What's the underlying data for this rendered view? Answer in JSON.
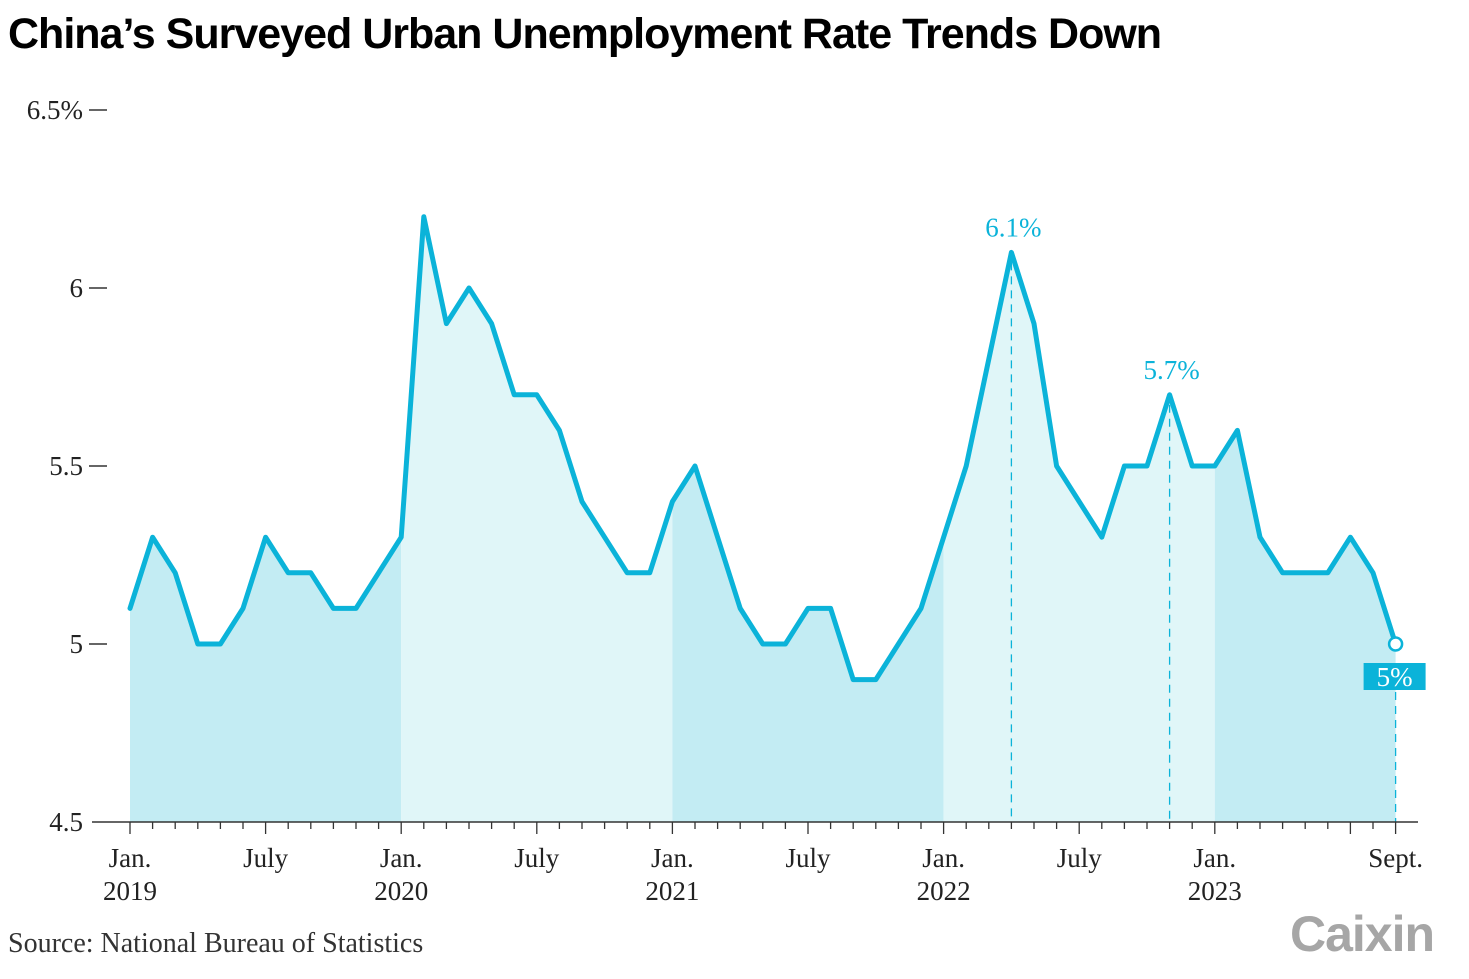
{
  "title": "China’s Surveyed Urban Unemployment Rate Trends Down",
  "source": "Source: National Bureau of Statistics",
  "logo": "Caixin",
  "colors": {
    "line": "#0bb3d9",
    "fill_dark": "#c3ecf3",
    "fill_light": "#e0f6f8",
    "axis": "#333333"
  },
  "chart_data": {
    "type": "area",
    "y_ticks": [
      {
        "value": 6.5,
        "label": "6.5%"
      },
      {
        "value": 6,
        "label": "6"
      },
      {
        "value": 5.5,
        "label": "5.5"
      },
      {
        "value": 5,
        "label": "5"
      },
      {
        "value": 4.5,
        "label": "4.5"
      }
    ],
    "ylim": [
      4.5,
      6.5
    ],
    "x": [
      "2019-01",
      "2019-02",
      "2019-03",
      "2019-04",
      "2019-05",
      "2019-06",
      "2019-07",
      "2019-08",
      "2019-09",
      "2019-10",
      "2019-11",
      "2019-12",
      "2020-01",
      "2020-02",
      "2020-03",
      "2020-04",
      "2020-05",
      "2020-06",
      "2020-07",
      "2020-08",
      "2020-09",
      "2020-10",
      "2020-11",
      "2020-12",
      "2021-01",
      "2021-02",
      "2021-03",
      "2021-04",
      "2021-05",
      "2021-06",
      "2021-07",
      "2021-08",
      "2021-09",
      "2021-10",
      "2021-11",
      "2021-12",
      "2022-01",
      "2022-02",
      "2022-03",
      "2022-04",
      "2022-05",
      "2022-06",
      "2022-07",
      "2022-08",
      "2022-09",
      "2022-10",
      "2022-11",
      "2022-12",
      "2023-01",
      "2023-02",
      "2023-03",
      "2023-04",
      "2023-05",
      "2023-06",
      "2023-07",
      "2023-08",
      "2023-09"
    ],
    "values": [
      5.1,
      5.3,
      5.2,
      5.0,
      5.0,
      5.1,
      5.3,
      5.2,
      5.2,
      5.1,
      5.1,
      5.2,
      5.3,
      6.2,
      5.9,
      6.0,
      5.9,
      5.7,
      5.7,
      5.6,
      5.4,
      5.3,
      5.2,
      5.2,
      5.4,
      5.5,
      5.3,
      5.1,
      5.0,
      5.0,
      5.1,
      5.1,
      4.9,
      4.9,
      5.0,
      5.1,
      5.3,
      5.5,
      5.8,
      6.1,
      5.9,
      5.5,
      5.4,
      5.3,
      5.5,
      5.5,
      5.7,
      5.5,
      5.5,
      5.6,
      5.3,
      5.2,
      5.2,
      5.2,
      5.3,
      5.2,
      5.0
    ],
    "x_ticks": [
      {
        "date": "2019-01",
        "label": "Jan.",
        "sublabel": "2019"
      },
      {
        "date": "2019-07",
        "label": "July",
        "sublabel": ""
      },
      {
        "date": "2020-01",
        "label": "Jan.",
        "sublabel": "2020"
      },
      {
        "date": "2020-07",
        "label": "July",
        "sublabel": ""
      },
      {
        "date": "2021-01",
        "label": "Jan.",
        "sublabel": "2021"
      },
      {
        "date": "2021-07",
        "label": "July",
        "sublabel": ""
      },
      {
        "date": "2022-01",
        "label": "Jan.",
        "sublabel": "2022"
      },
      {
        "date": "2022-07",
        "label": "July",
        "sublabel": ""
      },
      {
        "date": "2023-01",
        "label": "Jan.",
        "sublabel": "2023"
      },
      {
        "date": "2023-09",
        "label": "Sept.",
        "sublabel": ""
      }
    ],
    "annotations": [
      {
        "date": "2022-04",
        "value": 6.1,
        "label": "6.1%",
        "style": "text"
      },
      {
        "date": "2022-11",
        "value": 5.7,
        "label": "5.7%",
        "style": "text"
      },
      {
        "date": "2023-09",
        "value": 5.0,
        "label": "5%",
        "style": "boxed"
      }
    ],
    "grid": false
  }
}
